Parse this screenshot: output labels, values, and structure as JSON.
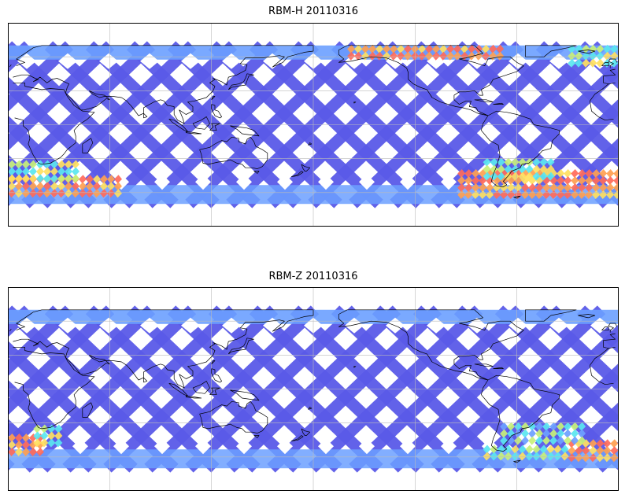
{
  "figure": {
    "panels": [
      {
        "id": "rbm-h",
        "title": "RBM-H 20110316",
        "hot_regions": [
          {
            "lon": [
              -180,
              -115
            ],
            "lat": [
              -62,
              -45
            ],
            "level": "high"
          },
          {
            "lon": [
              85,
              180
            ],
            "lat": [
              -62,
              -40
            ],
            "level": "high"
          },
          {
            "lon": [
              20,
              110
            ],
            "lat": [
              60,
              70
            ],
            "level": "high"
          },
          {
            "lon": [
              -180,
              -140
            ],
            "lat": [
              -45,
              -32
            ],
            "level": "medium"
          },
          {
            "lon": [
              100,
              140
            ],
            "lat": [
              -45,
              -30
            ],
            "level": "medium"
          },
          {
            "lon": [
              150,
              180
            ],
            "lat": [
              55,
              70
            ],
            "level": "medium"
          }
        ]
      },
      {
        "id": "rbm-z",
        "title": "RBM-Z 20110316",
        "hot_regions": [
          {
            "lon": [
              -180,
              -160
            ],
            "lat": [
              -55,
              -40
            ],
            "level": "high"
          },
          {
            "lon": [
              150,
              180
            ],
            "lat": [
              -62,
              -45
            ],
            "level": "high"
          },
          {
            "lon": [
              100,
              150
            ],
            "lat": [
              -62,
              -50
            ],
            "level": "medium"
          },
          {
            "lon": [
              -165,
              -150
            ],
            "lat": [
              -45,
              -32
            ],
            "level": "medium"
          },
          {
            "lon": [
              110,
              160
            ],
            "lat": [
              -45,
              -30
            ],
            "level": "low"
          }
        ]
      }
    ],
    "colors": {
      "background_low": "#6a6af2",
      "swath_low": "#5a5ae8",
      "swath_mid": "#6ca0ff",
      "cyan": "#5ae6f0",
      "yellow_green": "#c8f078",
      "yellow": "#ffe060",
      "orange": "#ffa050",
      "red": "#ff6a5a",
      "coastline": "#000000",
      "gridline": "#bbbbbb",
      "frame": "#000000"
    },
    "map": {
      "projection": "equirectangular",
      "central_longitude": 180,
      "lon_range": [
        -180,
        180
      ],
      "lat_range": [
        -90,
        90
      ],
      "swath_lat_range": [
        -70,
        70
      ],
      "gridlines": true,
      "gridline_lons": [
        -120,
        -60,
        0,
        60,
        120
      ],
      "gridline_lats": [
        -60,
        -30,
        0,
        30,
        60
      ]
    }
  }
}
